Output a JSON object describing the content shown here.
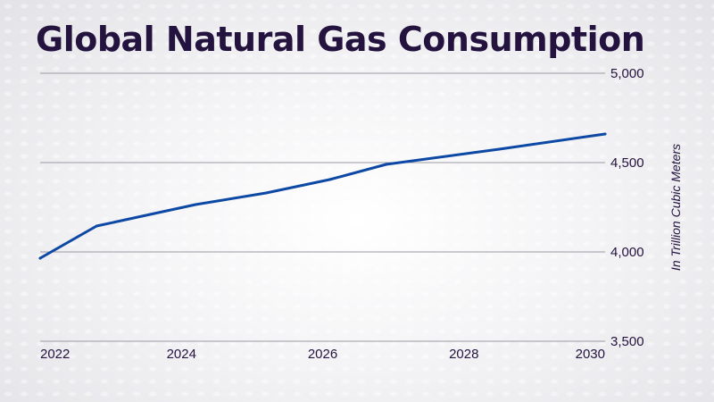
{
  "colors": {
    "title": "#24123f",
    "line": "#0d49a4",
    "grid": "#9a9aa2",
    "tick_text": "#24123f"
  },
  "chart_data": {
    "type": "line",
    "title": "Global Natural Gas Consumption",
    "xlabel": "",
    "ylabel": "In Trillion Cubic Meters",
    "x_tick_labels": [
      "2022",
      "2024",
      "2026",
      "2028",
      "2030"
    ],
    "y_tick_labels": [
      "3,500",
      "4,000",
      "4,500",
      "5,000"
    ],
    "y_ticks": [
      3500,
      4000,
      4500,
      5000
    ],
    "xlim": [
      2022,
      2030
    ],
    "ylim": [
      3500,
      5000
    ],
    "grid": true,
    "legend": "none",
    "series": [
      {
        "x": [
          2022,
          2022.8,
          2024.2,
          2025.2,
          2026.1,
          2026.9,
          2028.5,
          2030
        ],
        "values": [
          3965,
          4145,
          4265,
          4330,
          4405,
          4490,
          4575,
          4660
        ]
      }
    ]
  }
}
